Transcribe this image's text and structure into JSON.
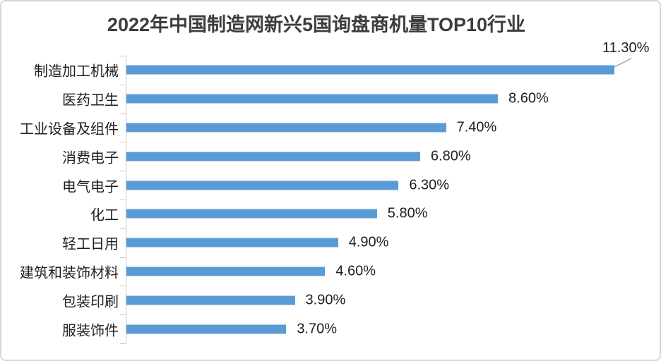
{
  "chart_data": {
    "type": "bar",
    "orientation": "horizontal",
    "title": "2022年中国制造网新兴5国询盘商机量TOP10行业",
    "categories": [
      "制造加工机械",
      "医药卫生",
      "工业设备及组件",
      "消费电子",
      "电气电子",
      "化工",
      "轻工日用",
      "建筑和装饰材料",
      "包装印刷",
      "服装饰件"
    ],
    "values": [
      11.3,
      8.6,
      7.4,
      6.8,
      6.3,
      5.8,
      4.9,
      4.6,
      3.9,
      3.7
    ],
    "value_labels": [
      "11.30%",
      "8.60%",
      "7.40%",
      "6.80%",
      "6.30%",
      "5.80%",
      "4.90%",
      "4.60%",
      "3.90%",
      "3.70%"
    ],
    "unit": "%",
    "xlim": [
      0,
      12
    ],
    "axis_max": 12,
    "grid": "off",
    "legend": "none",
    "value_label_position": "outside-end",
    "callout": {
      "index": 0,
      "label": "11.30%"
    },
    "colors": {
      "bar": "#5b9bd5",
      "axis": "#c9c9c9",
      "leader_line": "#a6a6a6",
      "title_text": "#3d3d3d",
      "label_text": "#1f1f1f",
      "card_border": "#d7d7d7",
      "background": "#ffffff"
    }
  }
}
